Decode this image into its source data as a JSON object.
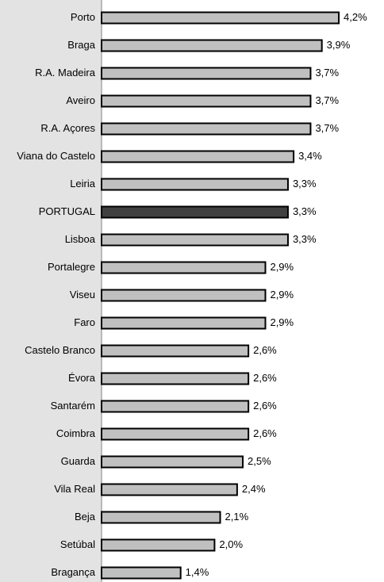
{
  "chart_data": {
    "type": "bar",
    "orientation": "horizontal",
    "categories": [
      "Porto",
      "Braga",
      "R.A. Madeira",
      "Aveiro",
      "R.A. Açores",
      "Viana do Castelo",
      "Leiria",
      "PORTUGAL",
      "Lisboa",
      "Portalegre",
      "Viseu",
      "Faro",
      "Castelo Branco",
      "Évora",
      "Santarém",
      "Coimbra",
      "Guarda",
      "Vila Real",
      "Beja",
      "Setúbal",
      "Bragança"
    ],
    "values": [
      4.2,
      3.9,
      3.7,
      3.7,
      3.7,
      3.4,
      3.3,
      3.3,
      3.3,
      2.9,
      2.9,
      2.9,
      2.6,
      2.6,
      2.6,
      2.6,
      2.5,
      2.4,
      2.1,
      2.0,
      1.4
    ],
    "value_labels": [
      "4,2%",
      "3,9%",
      "3,7%",
      "3,7%",
      "3,7%",
      "3,4%",
      "3,3%",
      "3,3%",
      "3,3%",
      "2,9%",
      "2,9%",
      "2,9%",
      "2,6%",
      "2,6%",
      "2,6%",
      "2,6%",
      "2,5%",
      "2,4%",
      "2,1%",
      "2,0%",
      "1,4%"
    ],
    "colors": [
      "#c0c0c0",
      "#c0c0c0",
      "#c0c0c0",
      "#c0c0c0",
      "#c0c0c0",
      "#c0c0c0",
      "#c0c0c0",
      "#404040",
      "#c0c0c0",
      "#c0c0c0",
      "#c0c0c0",
      "#c0c0c0",
      "#c0c0c0",
      "#c0c0c0",
      "#c0c0c0",
      "#c0c0c0",
      "#c0c0c0",
      "#c0c0c0",
      "#c0c0c0",
      "#c0c0c0",
      "#c0c0c0"
    ],
    "xlim": [
      0,
      5
    ]
  }
}
